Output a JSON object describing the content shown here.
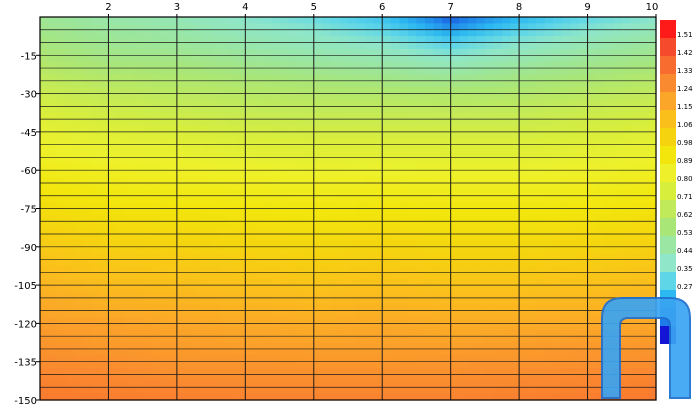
{
  "chart_data": {
    "type": "heatmap",
    "x_ticks": [
      "2",
      "3",
      "4",
      "5",
      "6",
      "7",
      "8",
      "9",
      "10"
    ],
    "y_ticks": [
      "-15",
      "-30",
      "-45",
      "-60",
      "-75",
      "-90",
      "-105",
      "-120",
      "-135",
      "-150"
    ],
    "xlim": [
      1,
      10
    ],
    "ylim": [
      -150,
      0
    ],
    "grid": true,
    "colorbar": {
      "values": [
        "1.51",
        "1.42",
        "1.33",
        "1.24",
        "1.15",
        "1.06",
        "0.98",
        "0.89",
        "0.80",
        "0.71",
        "0.62",
        "0.53",
        "0.44",
        "0.35",
        "0.27",
        "",
        "",
        ""
      ],
      "colors": [
        "#ff1a1a",
        "#f54a2c",
        "#f86c30",
        "#fa8a2f",
        "#fba628",
        "#fbbf1c",
        "#f5d40f",
        "#f2e60c",
        "#eef12a",
        "#d8ee3c",
        "#c1ea5a",
        "#a9e678",
        "#9ae6a2",
        "#8fe6c8",
        "#5ed6e8",
        "#2cb8f0",
        "#1e7ce8",
        "#1414d6"
      ]
    },
    "value_range": [
      0.0,
      1.6
    ],
    "x": [
      1,
      2,
      3,
      4,
      5,
      6,
      7,
      8,
      9,
      10
    ],
    "y": [
      0,
      -5,
      -10,
      -15,
      -20,
      -25,
      -30,
      -35,
      -40,
      -45,
      -50,
      -55,
      -60,
      -65,
      -70,
      -75,
      -80,
      -85,
      -90,
      -95,
      -100,
      -105,
      -110,
      -115,
      -120,
      -125,
      -130,
      -135,
      -140,
      -145,
      -150
    ],
    "values": [
      [
        0.5,
        0.45,
        0.42,
        0.36,
        0.3,
        0.22,
        0.05,
        0.18,
        0.28,
        0.36
      ],
      [
        0.52,
        0.48,
        0.45,
        0.4,
        0.36,
        0.28,
        0.14,
        0.26,
        0.36,
        0.42
      ],
      [
        0.55,
        0.5,
        0.48,
        0.44,
        0.4,
        0.36,
        0.26,
        0.36,
        0.42,
        0.48
      ],
      [
        0.58,
        0.53,
        0.52,
        0.48,
        0.45,
        0.42,
        0.36,
        0.42,
        0.48,
        0.52
      ],
      [
        0.62,
        0.57,
        0.56,
        0.53,
        0.5,
        0.48,
        0.44,
        0.49,
        0.53,
        0.57
      ],
      [
        0.66,
        0.62,
        0.6,
        0.58,
        0.56,
        0.54,
        0.52,
        0.55,
        0.58,
        0.62
      ],
      [
        0.7,
        0.66,
        0.64,
        0.62,
        0.61,
        0.6,
        0.59,
        0.6,
        0.63,
        0.66
      ],
      [
        0.74,
        0.7,
        0.68,
        0.66,
        0.65,
        0.65,
        0.64,
        0.65,
        0.68,
        0.7
      ],
      [
        0.78,
        0.74,
        0.72,
        0.7,
        0.69,
        0.69,
        0.69,
        0.69,
        0.72,
        0.74
      ],
      [
        0.81,
        0.78,
        0.76,
        0.74,
        0.73,
        0.73,
        0.73,
        0.73,
        0.75,
        0.78
      ],
      [
        0.84,
        0.81,
        0.8,
        0.78,
        0.77,
        0.77,
        0.77,
        0.77,
        0.79,
        0.81
      ],
      [
        0.87,
        0.84,
        0.83,
        0.81,
        0.8,
        0.81,
        0.8,
        0.8,
        0.82,
        0.84
      ],
      [
        0.9,
        0.87,
        0.86,
        0.85,
        0.84,
        0.84,
        0.84,
        0.84,
        0.85,
        0.87
      ],
      [
        0.93,
        0.9,
        0.89,
        0.88,
        0.87,
        0.88,
        0.87,
        0.87,
        0.88,
        0.9
      ],
      [
        0.96,
        0.93,
        0.92,
        0.91,
        0.9,
        0.91,
        0.9,
        0.9,
        0.91,
        0.93
      ],
      [
        0.99,
        0.96,
        0.95,
        0.94,
        0.93,
        0.94,
        0.93,
        0.93,
        0.94,
        0.96
      ],
      [
        1.02,
        0.99,
        0.98,
        0.97,
        0.96,
        0.97,
        0.96,
        0.96,
        0.97,
        0.99
      ],
      [
        1.05,
        1.02,
        1.01,
        1.0,
        0.99,
        1.0,
        0.99,
        0.99,
        1.0,
        1.02
      ],
      [
        1.08,
        1.05,
        1.04,
        1.03,
        1.02,
        1.03,
        1.02,
        1.02,
        1.03,
        1.05
      ],
      [
        1.11,
        1.08,
        1.07,
        1.06,
        1.05,
        1.06,
        1.05,
        1.05,
        1.06,
        1.08
      ],
      [
        1.14,
        1.11,
        1.1,
        1.09,
        1.08,
        1.09,
        1.08,
        1.08,
        1.09,
        1.11
      ],
      [
        1.17,
        1.14,
        1.13,
        1.12,
        1.11,
        1.12,
        1.11,
        1.11,
        1.12,
        1.14
      ],
      [
        1.2,
        1.17,
        1.16,
        1.15,
        1.14,
        1.15,
        1.14,
        1.14,
        1.15,
        1.17
      ],
      [
        1.22,
        1.2,
        1.19,
        1.18,
        1.17,
        1.18,
        1.17,
        1.17,
        1.18,
        1.2
      ],
      [
        1.25,
        1.24,
        1.22,
        1.21,
        1.2,
        1.21,
        1.2,
        1.2,
        1.21,
        1.22
      ],
      [
        1.27,
        1.25,
        1.24,
        1.23,
        1.22,
        1.23,
        1.22,
        1.23,
        1.24,
        1.25
      ],
      [
        1.29,
        1.27,
        1.26,
        1.25,
        1.25,
        1.25,
        1.25,
        1.26,
        1.27,
        1.28
      ],
      [
        1.31,
        1.3,
        1.28,
        1.28,
        1.27,
        1.27,
        1.28,
        1.28,
        1.29,
        1.3
      ],
      [
        1.33,
        1.32,
        1.3,
        1.3,
        1.3,
        1.3,
        1.3,
        1.31,
        1.32,
        1.33
      ],
      [
        1.35,
        1.34,
        1.33,
        1.32,
        1.32,
        1.32,
        1.32,
        1.33,
        1.34,
        1.35
      ],
      [
        1.37,
        1.36,
        1.35,
        1.34,
        1.34,
        1.34,
        1.34,
        1.35,
        1.36,
        1.37
      ]
    ]
  }
}
